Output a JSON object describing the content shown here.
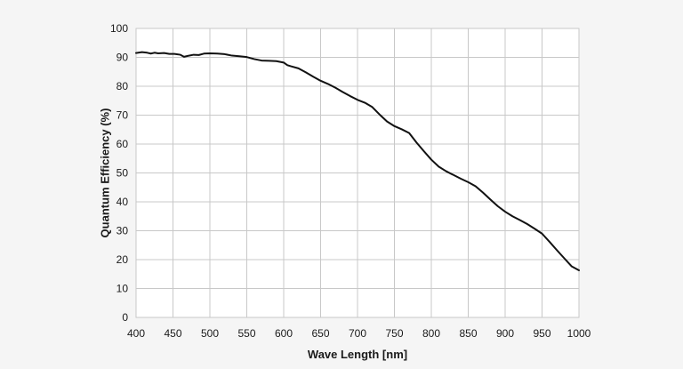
{
  "chart_data": {
    "type": "line",
    "title": "",
    "xlabel": "Wave Length [nm]",
    "ylabel": "Quantum Efficiency (%)",
    "xlim": [
      400,
      1000
    ],
    "ylim": [
      0,
      100
    ],
    "xticks": [
      400,
      450,
      500,
      550,
      600,
      650,
      700,
      750,
      800,
      850,
      900,
      950,
      1000
    ],
    "yticks": [
      0,
      10,
      20,
      30,
      40,
      50,
      60,
      70,
      80,
      90,
      100
    ],
    "grid": true,
    "line_color": "#111111",
    "series": [
      {
        "x": [
          400,
          408,
          415,
          420,
          425,
          430,
          438,
          445,
          452,
          460,
          465,
          470,
          478,
          485,
          492,
          500,
          510,
          520,
          530,
          540,
          550,
          560,
          570,
          580,
          590,
          600,
          605,
          610,
          620,
          630,
          640,
          650,
          660,
          670,
          680,
          690,
          700,
          710,
          720,
          730,
          740,
          750,
          760,
          770,
          780,
          790,
          800,
          810,
          820,
          830,
          840,
          850,
          860,
          870,
          880,
          890,
          900,
          910,
          920,
          930,
          940,
          950,
          960,
          970,
          980,
          990,
          1000
        ],
        "y": [
          91.5,
          91.8,
          91.6,
          91.3,
          91.6,
          91.4,
          91.5,
          91.2,
          91.2,
          90.9,
          90.2,
          90.5,
          90.9,
          90.8,
          91.3,
          91.4,
          91.3,
          91.1,
          90.6,
          90.4,
          90.1,
          89.4,
          88.9,
          88.8,
          88.7,
          88.2,
          87.3,
          86.9,
          86.2,
          84.8,
          83.3,
          81.9,
          80.8,
          79.5,
          78.0,
          76.6,
          75.3,
          74.3,
          72.8,
          70.2,
          67.8,
          66.2,
          65.1,
          63.8,
          60.5,
          57.5,
          54.6,
          52.2,
          50.6,
          49.3,
          48.0,
          46.8,
          45.4,
          43.2,
          40.8,
          38.5,
          36.6,
          35.0,
          33.7,
          32.3,
          30.7,
          29.0,
          26.2,
          23.3,
          20.5,
          17.7,
          16.3
        ]
      }
    ]
  }
}
